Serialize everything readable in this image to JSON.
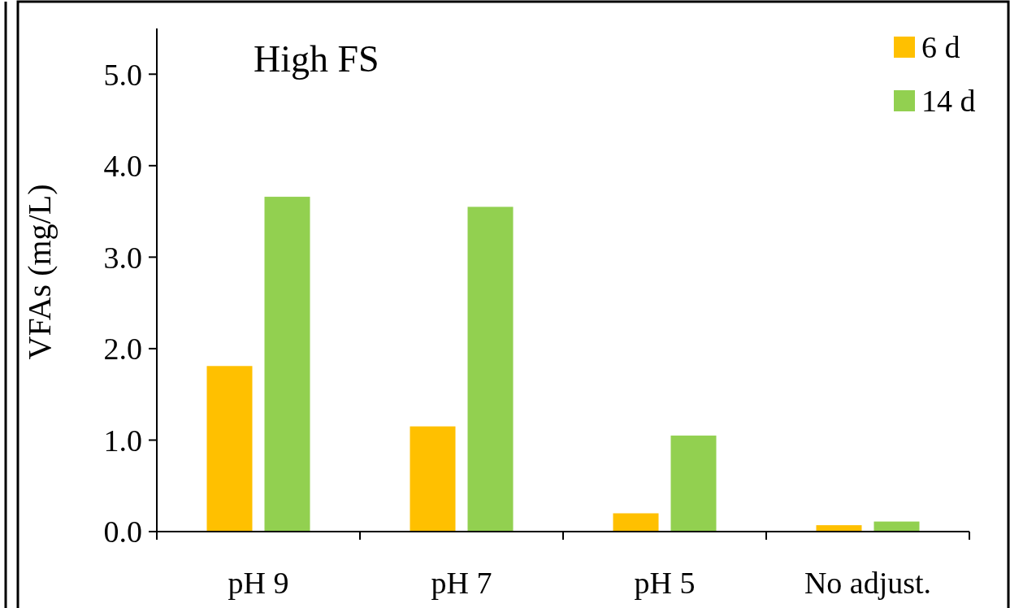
{
  "chart_data": {
    "type": "bar",
    "title": "High FS",
    "ylabel": "VFAs (mg/L)",
    "categories": [
      "pH 9",
      "pH 7",
      "pH 5",
      "No adjust."
    ],
    "series": [
      {
        "name": "6 d",
        "color": "#ffc000",
        "values": [
          1.81,
          1.15,
          0.2,
          0.07
        ]
      },
      {
        "name": "14 d",
        "color": "#92d050",
        "values": [
          3.66,
          3.55,
          1.05,
          0.11
        ]
      }
    ],
    "ylim": [
      0,
      5.5
    ],
    "yticks": [
      {
        "value": 0,
        "label": "0.0"
      },
      {
        "value": 1,
        "label": "1.0"
      },
      {
        "value": 2,
        "label": "2.0"
      },
      {
        "value": 3,
        "label": "3.0"
      },
      {
        "value": 4,
        "label": "4.0"
      },
      {
        "value": 5,
        "label": "5.0"
      }
    ],
    "grid": false,
    "legend": "top right"
  }
}
